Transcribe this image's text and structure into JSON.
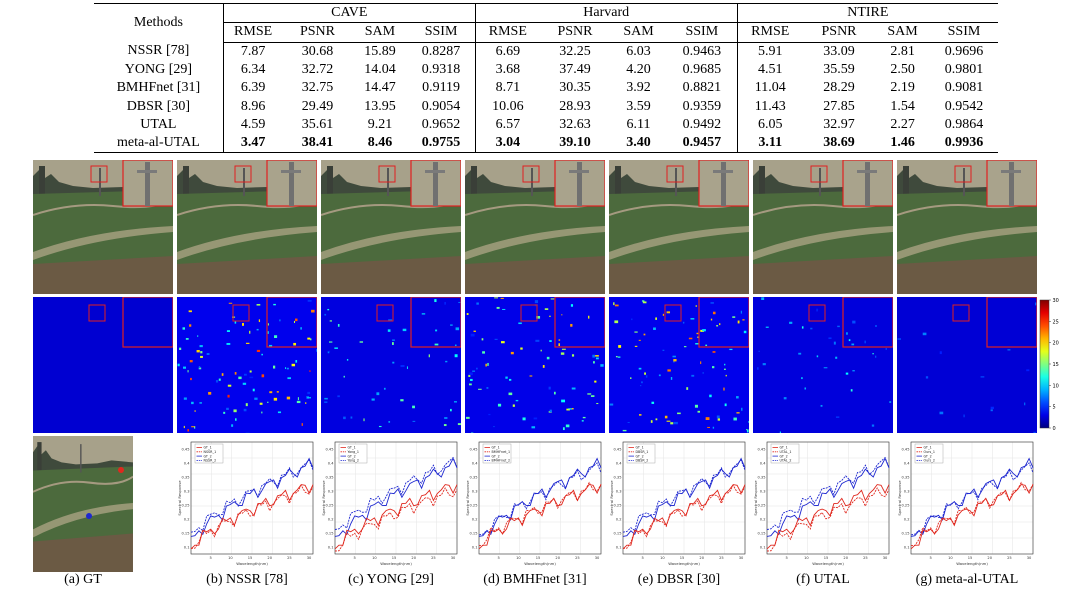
{
  "table": {
    "methods_header": "Methods",
    "groups": [
      "CAVE",
      "Harvard",
      "NTIRE"
    ],
    "metrics": [
      "RMSE",
      "PSNR",
      "SAM",
      "SSIM"
    ],
    "rows": [
      {
        "method": "NSSR [78]",
        "values": [
          "7.87",
          "30.68",
          "15.89",
          "0.8287",
          "6.69",
          "32.25",
          "6.03",
          "0.9463",
          "5.91",
          "33.09",
          "2.81",
          "0.9696"
        ]
      },
      {
        "method": "YONG [29]",
        "values": [
          "6.34",
          "32.72",
          "14.04",
          "0.9318",
          "3.68",
          "37.49",
          "4.20",
          "0.9685",
          "4.51",
          "35.59",
          "2.50",
          "0.9801"
        ]
      },
      {
        "method": "BMHFnet [31]",
        "values": [
          "6.39",
          "32.75",
          "14.47",
          "0.9119",
          "8.71",
          "30.35",
          "3.92",
          "0.8821",
          "11.04",
          "28.29",
          "2.19",
          "0.9081"
        ]
      },
      {
        "method": "DBSR [30]",
        "values": [
          "8.96",
          "29.49",
          "13.95",
          "0.9054",
          "10.06",
          "28.93",
          "3.59",
          "0.9359",
          "11.43",
          "27.85",
          "1.54",
          "0.9542"
        ]
      },
      {
        "method": "UTAL",
        "values": [
          "4.59",
          "35.61",
          "9.21",
          "0.9652",
          "6.57",
          "32.63",
          "6.11",
          "0.9492",
          "6.05",
          "32.97",
          "2.27",
          "0.9864"
        ]
      },
      {
        "method": "meta-al-UTAL",
        "values": [
          "3.47",
          "38.41",
          "8.46",
          "0.9755",
          "3.04",
          "39.10",
          "3.40",
          "0.9457",
          "3.11",
          "38.69",
          "1.46",
          "0.9936"
        ]
      }
    ]
  },
  "figure": {
    "captions": [
      "(a) GT",
      "(b) NSSR [78]",
      "(c) YONG [29]",
      "(d) BMHFnet [31]",
      "(e) DBSR [30]",
      "(f) UTAL",
      "(g) meta-al-UTAL"
    ],
    "colorbar": {
      "ticks": [
        "30",
        "25",
        "20",
        "15",
        "10",
        "5",
        "0"
      ],
      "min": 0,
      "max": 30
    },
    "legend_labels": [
      "GT_1",
      "GT_2"
    ],
    "method_legend_keys": [
      "",
      "NSSR",
      "Yong",
      "BMHFnet",
      "DBSR",
      "UTAL",
      "Ours"
    ],
    "spectral_axis": {
      "xlabel": "Wavelength(nm)",
      "ylabel": "Spectral Response",
      "xticks": [
        "5",
        "10",
        "15",
        "20",
        "25",
        "30"
      ],
      "yticks": [
        "0.1",
        "0.15",
        "0.2",
        "0.25",
        "0.3",
        "0.35",
        "0.4",
        "0.45"
      ]
    },
    "colors": {
      "gt_red": "#e0281e",
      "gt_blue": "#1e28d0",
      "box": "#e02020",
      "jet_low": "#00008f"
    },
    "error_levels": [
      0.0,
      0.55,
      0.28,
      0.45,
      0.5,
      0.2,
      0.08
    ]
  }
}
